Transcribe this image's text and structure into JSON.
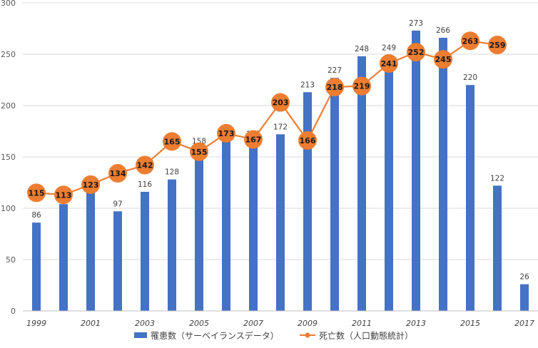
{
  "colors": {
    "bar": "#4472C4",
    "line": "#ED7D31",
    "grid": "#d9d9d9",
    "axis": "#bfbfbf"
  },
  "chart_data": {
    "type": "bar+line",
    "categories": [
      "1999",
      "2000",
      "2001",
      "2002",
      "2003",
      "2004",
      "2005",
      "2006",
      "2007",
      "2008",
      "2009",
      "2010",
      "2011",
      "2012",
      "2013",
      "2014",
      "2015",
      "2016",
      "2017"
    ],
    "x_tick_labels": [
      "1999",
      "2001",
      "2003",
      "2005",
      "2007",
      "2009",
      "2011",
      "2013",
      "2015",
      "2017"
    ],
    "y_ticks": [
      "0",
      "50",
      "100",
      "150",
      "200",
      "250",
      "300"
    ],
    "ylim": [
      0,
      300
    ],
    "grid": true,
    "legend_position": "bottom",
    "series": [
      {
        "name": "罹患数（サーベイランスデータ）",
        "type": "bar",
        "values": [
          86,
          104,
          115,
          97,
          116,
          128,
          158,
          167,
          165,
          172,
          213,
          227,
          248,
          249,
          273,
          266,
          220,
          122,
          26
        ]
      },
      {
        "name": "死亡数（人口動態統計）",
        "type": "line",
        "values": [
          115,
          113,
          123,
          134,
          142,
          165,
          155,
          173,
          167,
          203,
          166,
          218,
          219,
          241,
          252,
          245,
          263,
          259,
          null
        ]
      }
    ]
  }
}
